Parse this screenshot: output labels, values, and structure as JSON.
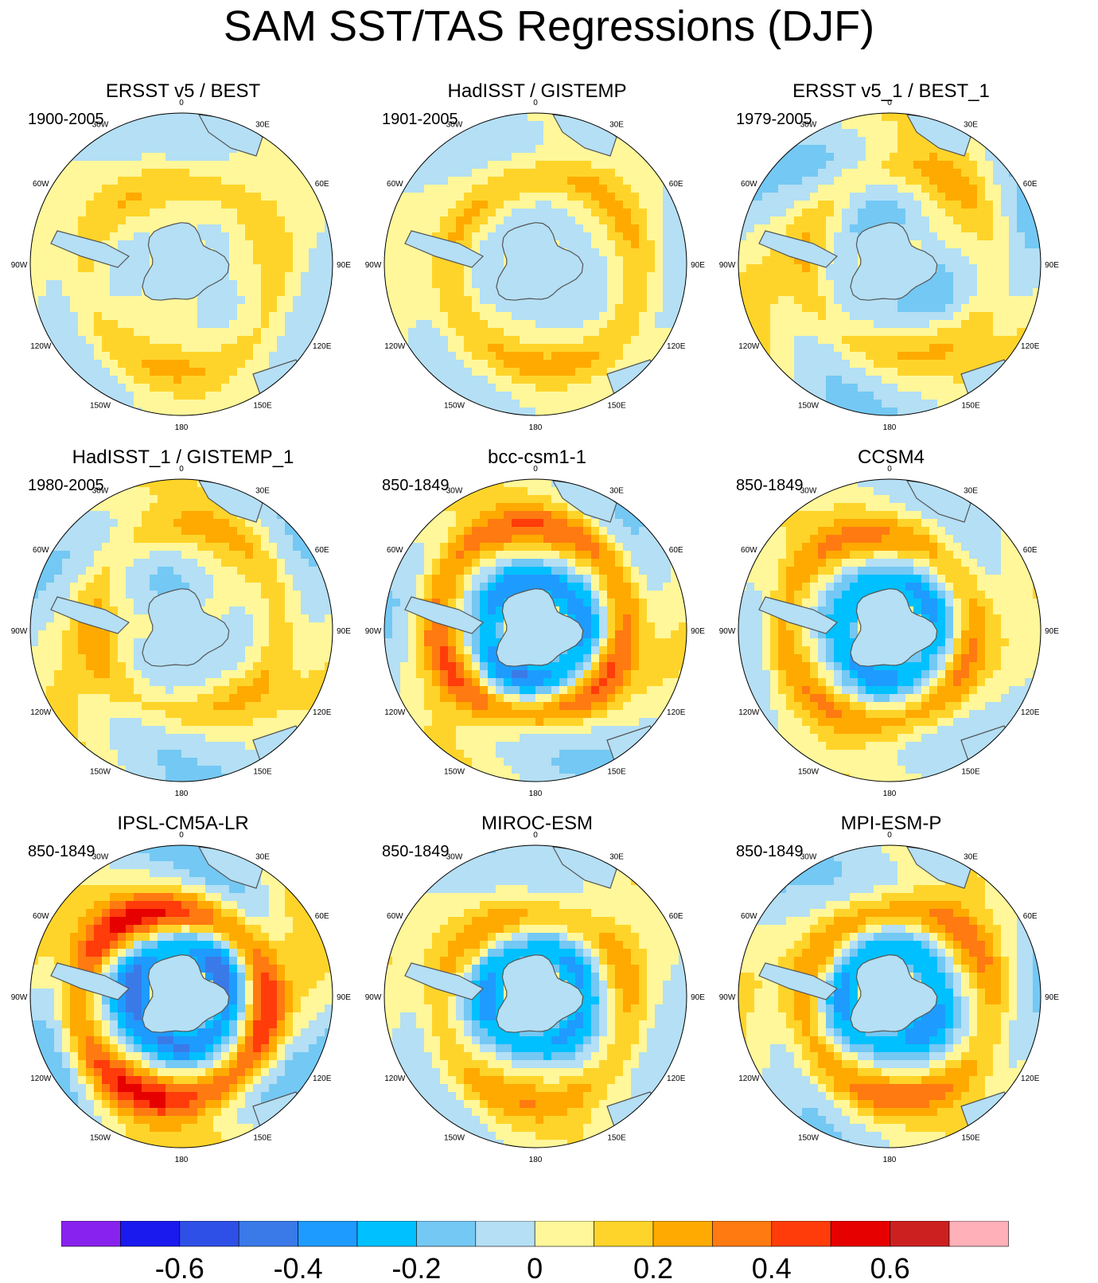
{
  "title": "SAM SST/TAS Regressions (DJF)",
  "longitude_labels": [
    "0",
    "30E",
    "60E",
    "90E",
    "120E",
    "150E",
    "180",
    "150W",
    "120W",
    "90W",
    "60W",
    "30W"
  ],
  "panels": [
    {
      "title": "ERSST v5 / BEST",
      "period": "1900-2005",
      "ring": 0.16,
      "var": 0.08,
      "antarctic": 0.0
    },
    {
      "title": "HadISST / GISTEMP",
      "period": "1901-2005",
      "ring": 0.2,
      "var": 0.06,
      "antarctic": -0.05
    },
    {
      "title": "ERSST v5_1 / BEST_1",
      "period": "1979-2005",
      "ring": 0.15,
      "var": 0.14,
      "antarctic": -0.1
    },
    {
      "title": "HadISST_1 / GISTEMP_1",
      "period": "1980-2005",
      "ring": 0.18,
      "var": 0.12,
      "antarctic": -0.05
    },
    {
      "title": "bcc-csm1-1",
      "period": "850-1849",
      "ring": 0.35,
      "var": 0.12,
      "antarctic": -0.35
    },
    {
      "title": "CCSM4",
      "period": "850-1849",
      "ring": 0.27,
      "var": 0.1,
      "antarctic": -0.3
    },
    {
      "title": "IPSL-CM5A-LR",
      "period": "850-1849",
      "ring": 0.42,
      "var": 0.18,
      "antarctic": -0.4
    },
    {
      "title": "MIROC-ESM",
      "period": "850-1849",
      "ring": 0.22,
      "var": 0.1,
      "antarctic": -0.3
    },
    {
      "title": "MPI-ESM-P",
      "period": "850-1849",
      "ring": 0.28,
      "var": 0.12,
      "antarctic": -0.3
    }
  ],
  "colorbar": {
    "colors": [
      "#8822ee",
      "#1a1aee",
      "#2e50e6",
      "#3a7ae8",
      "#1e9bff",
      "#00c0ff",
      "#74c8f4",
      "#b4dff4",
      "#fff79a",
      "#ffd42a",
      "#ffaa00",
      "#ff7a10",
      "#ff3c0a",
      "#e60000",
      "#cc2020",
      "#ffb0b8"
    ],
    "tick_labels": [
      "-0.6",
      "-0.4",
      "-0.2",
      "0",
      "0.2",
      "0.4",
      "0.6"
    ]
  }
}
